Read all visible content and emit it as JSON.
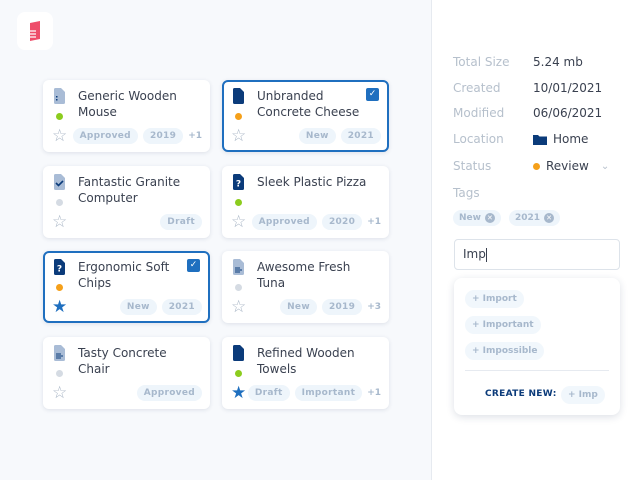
{
  "colors": {
    "accent": "#1f6fbf",
    "navy": "#0b3b7a",
    "green": "#8ccc1e",
    "orange": "#f5a01a",
    "gray": "#d5dbe3",
    "logo": "#ee4d6a"
  },
  "cards": [
    {
      "title": "Generic Wooden Mouse",
      "icon": "file-dots-icon",
      "status": "green",
      "starred": false,
      "selected": false,
      "tags": [
        "Approved",
        "2019"
      ],
      "more": "+1"
    },
    {
      "title": "Unbranded Concrete Cheese",
      "icon": "file-dark-icon",
      "status": "orange",
      "starred": false,
      "selected": true,
      "tags": [
        "New",
        "2021"
      ],
      "more": ""
    },
    {
      "title": "Fantastic Granite Computer",
      "icon": "file-check-icon",
      "status": "gray",
      "starred": false,
      "selected": false,
      "tags": [
        "Draft"
      ],
      "more": ""
    },
    {
      "title": "Sleek Plastic Pizza",
      "icon": "file-question-icon",
      "status": "green",
      "starred": false,
      "selected": false,
      "tags": [
        "Approved",
        "2020"
      ],
      "more": "+1"
    },
    {
      "title": "Ergonomic Soft Chips",
      "icon": "file-question-icon",
      "status": "orange",
      "starred": true,
      "selected": true,
      "tags": [
        "New",
        "2021"
      ],
      "more": ""
    },
    {
      "title": "Awesome Fresh Tuna",
      "icon": "file-lines-icon",
      "status": "gray",
      "starred": false,
      "selected": false,
      "tags": [
        "New",
        "2019"
      ],
      "more": "+3"
    },
    {
      "title": "Tasty Concrete Chair",
      "icon": "file-lines-icon",
      "status": "gray",
      "starred": false,
      "selected": false,
      "tags": [
        "Approved"
      ],
      "more": ""
    },
    {
      "title": "Refined Wooden Towels",
      "icon": "file-dark-icon",
      "status": "green",
      "starred": true,
      "selected": false,
      "tags": [
        "Draft",
        "Important"
      ],
      "more": "+1"
    }
  ],
  "details": {
    "total_size_label": "Total Size",
    "total_size": "5.24 mb",
    "created_label": "Created",
    "created": "10/01/2021",
    "modified_label": "Modified",
    "modified": "06/06/2021",
    "location_label": "Location",
    "location": "Home",
    "status_label": "Status",
    "status": "Review",
    "tags_label": "Tags",
    "tags": [
      "New",
      "2021"
    ]
  },
  "tag_input": {
    "value": "Imp"
  },
  "dropdown": {
    "options": [
      "+ Import",
      "+ Important",
      "+ Impossible"
    ],
    "create_label": "CREATE NEW:",
    "create_value": "+ Imp"
  }
}
